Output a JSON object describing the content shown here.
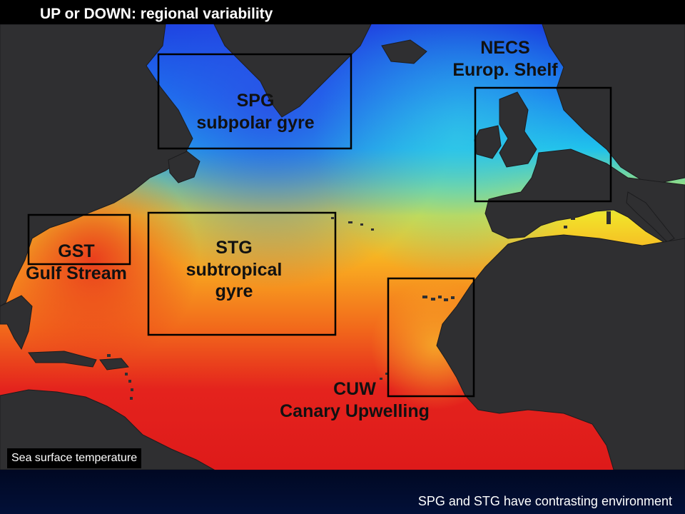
{
  "title": "UP or DOWN: regional variability",
  "map": {
    "caption": "Sea surface temperature",
    "colors": {
      "land": "#2f2f31",
      "cold": "#1a3fe0",
      "cool": "#1fb4ee",
      "mild": "#f2e22a",
      "warm": "#f57f1c",
      "hot": "#e4231d",
      "box": "#000000"
    },
    "regions": [
      {
        "id": "spg",
        "abbr": "SPG",
        "name": "subpolar gyre"
      },
      {
        "id": "necs",
        "abbr": "NECS",
        "name": "Europ. Shelf"
      },
      {
        "id": "gst",
        "abbr": "GST",
        "name": "Gulf Stream"
      },
      {
        "id": "stg",
        "abbr": "STG",
        "name": "subtropical",
        "name2": "gyre"
      },
      {
        "id": "cuw",
        "abbr": "CUW",
        "name": "Canary Upwelling"
      }
    ]
  },
  "footer": "SPG and STG have contrasting environment"
}
